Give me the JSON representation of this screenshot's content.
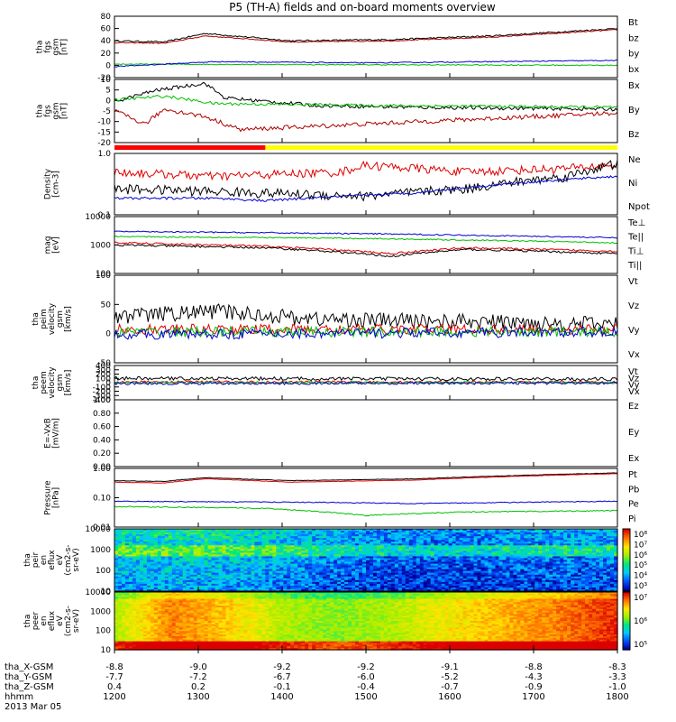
{
  "title": "P5 (TH-A) fields and on-board moments overview",
  "chart_data": [
    {
      "type": "line",
      "ylabel": [
        "tha",
        "fgs",
        "gsm",
        "[nT]"
      ],
      "yticks": [
        "80",
        "60",
        "40",
        "20",
        "0",
        "-20"
      ],
      "ylim": [
        -20,
        80
      ],
      "series": [
        {
          "name": "Bt",
          "color": "#000000",
          "noise": 1.2,
          "points": [
            [
              0,
              40
            ],
            [
              0.1,
              38
            ],
            [
              0.18,
              52
            ],
            [
              0.35,
              40
            ],
            [
              0.55,
              42
            ],
            [
              0.75,
              48
            ],
            [
              1,
              60
            ]
          ]
        },
        {
          "name": "bz",
          "color": "#b00000",
          "noise": 0.8,
          "points": [
            [
              0,
              37
            ],
            [
              0.1,
              36
            ],
            [
              0.18,
              48
            ],
            [
              0.35,
              38
            ],
            [
              0.55,
              40
            ],
            [
              0.75,
              46
            ],
            [
              1,
              58
            ]
          ]
        },
        {
          "name": "by",
          "color": "#00c000",
          "noise": 0.8,
          "points": [
            [
              0,
              2
            ],
            [
              0.5,
              1
            ],
            [
              1,
              0
            ]
          ]
        },
        {
          "name": "bx",
          "color": "#0000d0",
          "noise": 0.8,
          "points": [
            [
              0,
              -2
            ],
            [
              0.2,
              6
            ],
            [
              0.5,
              4
            ],
            [
              1,
              8
            ]
          ]
        }
      ]
    },
    {
      "type": "line",
      "ylabel": [
        "tha",
        "fgs",
        "gsm",
        "[nT]"
      ],
      "yticks": [
        "10",
        "5",
        "0",
        "-5",
        "-10",
        "-15",
        "-20"
      ],
      "ylim": [
        -22,
        12
      ],
      "series": [
        {
          "name": "Bx",
          "color": "#000000",
          "noise": 1.0,
          "points": [
            [
              0,
              0
            ],
            [
              0.08,
              6
            ],
            [
              0.18,
              10
            ],
            [
              0.22,
              2
            ],
            [
              0.4,
              -2
            ],
            [
              0.6,
              -3
            ],
            [
              1,
              -4
            ]
          ]
        },
        {
          "name": "By",
          "color": "#00c000",
          "noise": 0.8,
          "points": [
            [
              0,
              1
            ],
            [
              0.1,
              3
            ],
            [
              0.2,
              -1
            ],
            [
              0.5,
              -2
            ],
            [
              1,
              -3
            ]
          ]
        },
        {
          "name": "Bz",
          "color": "#b00000",
          "noise": 1.2,
          "points": [
            [
              0,
              -5
            ],
            [
              0.06,
              -12
            ],
            [
              0.1,
              -4
            ],
            [
              0.18,
              -8
            ],
            [
              0.25,
              -15
            ],
            [
              0.5,
              -12
            ],
            [
              1,
              -6
            ]
          ]
        }
      ]
    },
    {
      "type": "line",
      "log": true,
      "ylabel": [
        "Density",
        "[cm-3]"
      ],
      "yticks": [
        "1.0",
        "0.1"
      ],
      "ylim": [
        0.1,
        1.3
      ],
      "series": [
        {
          "name": "Ne",
          "color": "#e00000",
          "noise": 0.18,
          "points": [
            [
              0,
              0.6
            ],
            [
              0.2,
              0.5
            ],
            [
              0.45,
              0.6
            ],
            [
              0.5,
              0.8
            ],
            [
              0.7,
              0.6
            ],
            [
              0.9,
              0.7
            ],
            [
              1,
              0.8
            ]
          ]
        },
        {
          "name": "Ni",
          "color": "#000000",
          "noise": 0.2,
          "points": [
            [
              0,
              0.3
            ],
            [
              0.3,
              0.25
            ],
            [
              0.5,
              0.22
            ],
            [
              0.7,
              0.3
            ],
            [
              0.9,
              0.5
            ],
            [
              1,
              0.85
            ]
          ]
        },
        {
          "name": "Npot",
          "color": "#0000d0",
          "noise": 0.05,
          "points": [
            [
              0,
              0.2
            ],
            [
              0.2,
              0.2
            ],
            [
              0.3,
              0.18
            ],
            [
              0.6,
              0.25
            ],
            [
              1,
              0.5
            ]
          ]
        }
      ]
    },
    {
      "type": "line",
      "log": true,
      "ylabel": [
        "mag",
        "[eV]"
      ],
      "yticks": [
        "10000",
        "1000",
        "100"
      ],
      "ylim": [
        100,
        10000
      ],
      "series": [
        {
          "name": "Te⊥",
          "color": "#e00000",
          "noise": 0.08,
          "points": [
            [
              0,
              1200
            ],
            [
              0.3,
              900
            ],
            [
              0.55,
              500
            ],
            [
              0.7,
              800
            ],
            [
              1,
              600
            ]
          ]
        },
        {
          "name": "Te||",
          "color": "#000000",
          "noise": 0.08,
          "points": [
            [
              0,
              1000
            ],
            [
              0.3,
              800
            ],
            [
              0.55,
              400
            ],
            [
              0.7,
              700
            ],
            [
              1,
              500
            ]
          ]
        },
        {
          "name": "Ti⊥",
          "color": "#0000d0",
          "noise": 0.05,
          "points": [
            [
              0,
              3000
            ],
            [
              0.5,
              2500
            ],
            [
              1,
              1800
            ]
          ]
        },
        {
          "name": "Ti||",
          "color": "#00c000",
          "noise": 0.05,
          "points": [
            [
              0,
              2000
            ],
            [
              0.5,
              1700
            ],
            [
              1,
              1200
            ]
          ]
        }
      ]
    },
    {
      "type": "line",
      "ylabel": [
        "tha",
        "peim",
        "velocity",
        "gsm",
        "[km/s]"
      ],
      "yticks": [
        "100",
        "50",
        "0",
        "-50"
      ],
      "ylim": [
        -60,
        110
      ],
      "series": [
        {
          "name": "Vt",
          "color": "#000000",
          "noise": 15,
          "points": [
            [
              0,
              30
            ],
            [
              0.2,
              40
            ],
            [
              0.4,
              25
            ],
            [
              1,
              15
            ]
          ]
        },
        {
          "name": "Vz",
          "color": "#e00000",
          "noise": 10,
          "points": [
            [
              0,
              5
            ],
            [
              1,
              5
            ]
          ]
        },
        {
          "name": "Vy",
          "color": "#00c000",
          "noise": 10,
          "points": [
            [
              0,
              0
            ],
            [
              1,
              0
            ]
          ]
        },
        {
          "name": "Vx",
          "color": "#0000d0",
          "noise": 10,
          "points": [
            [
              0,
              -5
            ],
            [
              1,
              0
            ]
          ]
        }
      ]
    },
    {
      "type": "line",
      "ylabel": [
        "tha",
        "peem",
        "velocity",
        "gsm",
        "[km/s]"
      ],
      "yticks": [
        "400",
        "300",
        "200",
        "100",
        "0",
        "-100",
        "-200",
        "-300",
        "-400"
      ],
      "ylim": [
        -400,
        400
      ],
      "series": [
        {
          "name": "Vt",
          "color": "#000000",
          "noise": 40,
          "points": [
            [
              0,
              100
            ],
            [
              1,
              80
            ]
          ]
        },
        {
          "name": "Vz",
          "color": "#e00000",
          "noise": 25,
          "points": [
            [
              0,
              20
            ],
            [
              1,
              10
            ]
          ]
        },
        {
          "name": "Vy",
          "color": "#00c000",
          "noise": 30,
          "points": [
            [
              0,
              0
            ],
            [
              1,
              0
            ]
          ]
        },
        {
          "name": "Vx",
          "color": "#0000d0",
          "noise": 30,
          "points": [
            [
              0,
              -20
            ],
            [
              1,
              -10
            ]
          ]
        }
      ]
    },
    {
      "type": "line",
      "ylabel": [
        "E=-VxB",
        "[mV/m]"
      ],
      "yticks": [
        "1.00",
        "0.80",
        "0.60",
        "0.40",
        "0.20",
        "0.00"
      ],
      "ylim": [
        0,
        1
      ],
      "series": [
        {
          "name": "Ez",
          "color": "#e00000",
          "points": []
        },
        {
          "name": "Ey",
          "color": "#00c000",
          "points": []
        },
        {
          "name": "Ex",
          "color": "#0000d0",
          "points": []
        }
      ]
    },
    {
      "type": "line",
      "log": true,
      "ylabel": [
        "Pressure",
        "[nPa]"
      ],
      "yticks": [
        "1.00",
        "0.10",
        "0.01"
      ],
      "ylim": [
        0.008,
        2.5
      ],
      "series": [
        {
          "name": "Pt",
          "color": "#000000",
          "noise": 0.02,
          "points": [
            [
              0,
              0.75
            ],
            [
              0.1,
              0.7
            ],
            [
              0.18,
              1.0
            ],
            [
              0.35,
              0.75
            ],
            [
              0.6,
              0.9
            ],
            [
              1,
              1.6
            ]
          ]
        },
        {
          "name": "Pb",
          "color": "#e00000",
          "noise": 0.02,
          "points": [
            [
              0,
              0.65
            ],
            [
              0.1,
              0.6
            ],
            [
              0.18,
              0.9
            ],
            [
              0.35,
              0.65
            ],
            [
              0.6,
              0.8
            ],
            [
              1,
              1.5
            ]
          ]
        },
        {
          "name": "Pe",
          "color": "#00c000",
          "noise": 0.05,
          "points": [
            [
              0,
              0.06
            ],
            [
              0.3,
              0.05
            ],
            [
              0.5,
              0.025
            ],
            [
              0.7,
              0.035
            ],
            [
              1,
              0.04
            ]
          ]
        },
        {
          "name": "Pi",
          "color": "#0000d0",
          "noise": 0.04,
          "points": [
            [
              0,
              0.1
            ],
            [
              0.4,
              0.09
            ],
            [
              0.6,
              0.08
            ],
            [
              1,
              0.1
            ]
          ]
        }
      ]
    },
    {
      "type": "heatmap",
      "ylabel": [
        "tha",
        "peir",
        "en",
        "eflux",
        "eV",
        "(cm2-s-",
        "sr-eV)"
      ],
      "yticks": [
        "10000",
        "1000",
        "100",
        "10"
      ],
      "colorbar": [
        "10⁸",
        "10⁷",
        "10⁶",
        "10⁵",
        "10⁴",
        "10³"
      ],
      "profile": [
        0.55,
        0.6,
        0.58,
        0.45,
        0.3,
        0.2,
        0.18,
        0.22,
        0.28,
        0.3
      ]
    },
    {
      "type": "heatmap",
      "ylabel": [
        "tha",
        "peer",
        "en",
        "eflux",
        "eV",
        "(cm2-s-",
        "sr-eV)"
      ],
      "yticks": [
        "10000",
        "1000",
        "100",
        "10"
      ],
      "colorbar": [
        "10⁷",
        "10⁶",
        "10⁵"
      ],
      "profile": [
        0.6,
        0.85,
        0.75,
        0.6,
        0.55,
        0.6,
        0.7,
        0.78,
        0.85,
        0.95
      ]
    }
  ],
  "status_bar": {
    "red_until": 0.3,
    "red": "#ff0000",
    "yellow": "#ffff00"
  },
  "time_axis": {
    "rows": [
      {
        "label": "tha_X-GSM",
        "values": [
          "-8.8",
          "-9.0",
          "-9.2",
          "-9.2",
          "-9.1",
          "-8.8",
          "-8.3"
        ]
      },
      {
        "label": "tha_Y-GSM",
        "values": [
          "-7.7",
          "-7.2",
          "-6.7",
          "-6.0",
          "-5.2",
          "-4.3",
          "-3.3"
        ]
      },
      {
        "label": "tha_Z-GSM",
        "values": [
          "0.4",
          "0.2",
          "-0.1",
          "-0.4",
          "-0.7",
          "-0.9",
          "-1.0"
        ]
      },
      {
        "label": "hhmm",
        "values": [
          "1200",
          "1300",
          "1400",
          "1500",
          "1600",
          "1700",
          "1800"
        ]
      }
    ],
    "date": "2013 Mar 05"
  }
}
